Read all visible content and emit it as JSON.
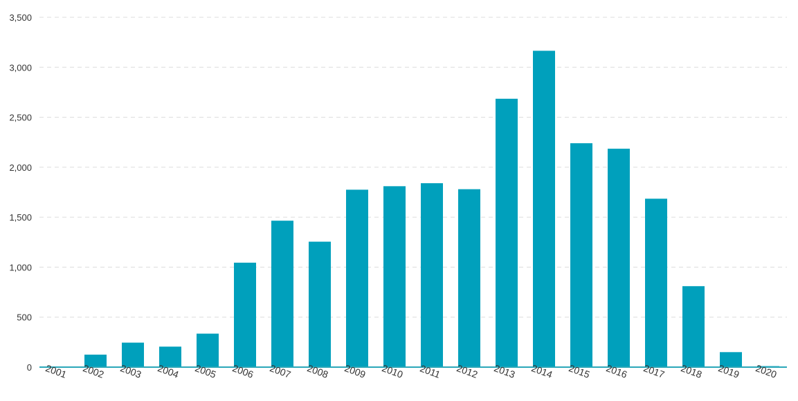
{
  "chart_data": {
    "type": "bar",
    "title": "",
    "xlabel": "",
    "ylabel": "",
    "categories": [
      "2001",
      "2002",
      "2003",
      "2004",
      "2005",
      "2006",
      "2007",
      "2008",
      "2009",
      "2010",
      "2011",
      "2012",
      "2013",
      "2014",
      "2015",
      "2016",
      "2017",
      "2018",
      "2019",
      "2020"
    ],
    "values": [
      0,
      125,
      245,
      205,
      335,
      1045,
      1465,
      1255,
      1775,
      1810,
      1840,
      1780,
      2685,
      3165,
      2240,
      2185,
      1685,
      810,
      150,
      10
    ],
    "ylim": [
      0,
      3500
    ],
    "yticks": [
      0,
      500,
      1000,
      1500,
      2000,
      2500,
      3000,
      3500
    ],
    "ytick_labels": [
      "0",
      "500",
      "1,000",
      "1,500",
      "2,000",
      "2,500",
      "3,000",
      "3,500"
    ],
    "grid": true,
    "legend": "none",
    "bar_color": "#00a0bc",
    "axis_color": "#2aa7b8",
    "grid_color": "#dcdcdc"
  }
}
